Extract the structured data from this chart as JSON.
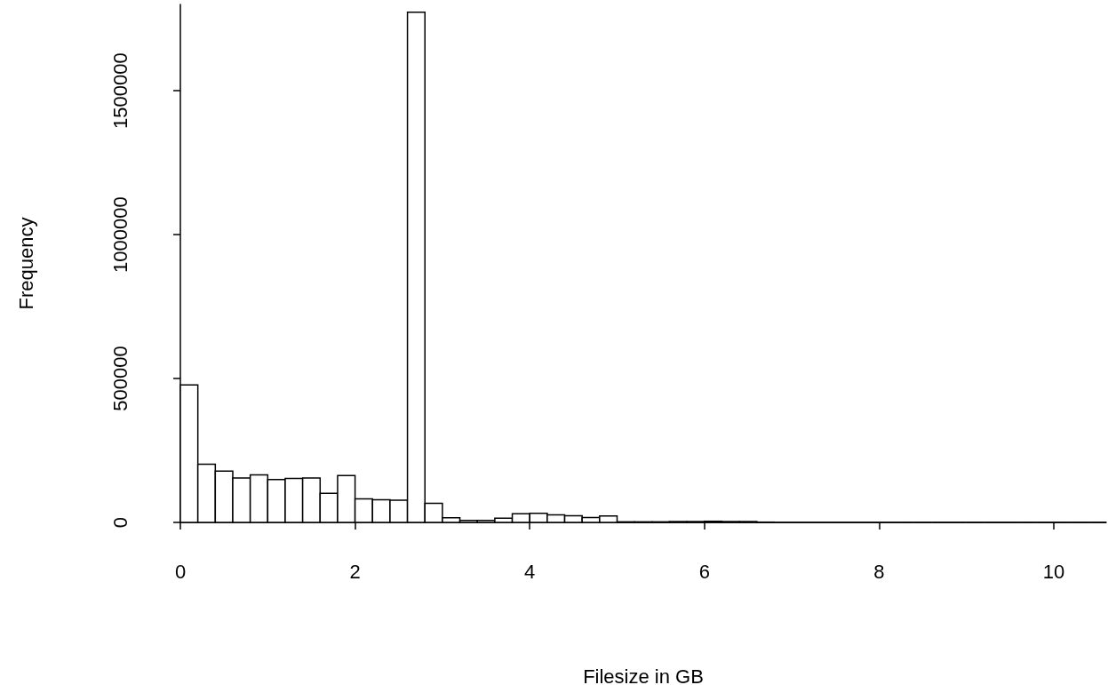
{
  "chart_data": {
    "type": "histogram",
    "xlabel": "Filesize in GB",
    "ylabel": "Frequency",
    "bins": [
      0,
      0.2,
      0.4,
      0.6,
      0.8,
      1,
      1.2,
      1.4,
      1.6,
      1.8,
      2,
      2.2,
      2.4,
      2.6,
      2.8,
      3,
      3.2,
      3.4,
      3.6,
      3.8,
      4,
      4.2,
      4.4,
      4.6,
      4.8,
      5,
      5.2,
      5.4,
      5.6,
      5.8,
      6,
      6.2,
      6.4,
      6.6,
      6.8,
      7,
      7.2,
      7.4,
      7.6,
      7.8,
      8,
      8.2,
      8.4,
      8.6,
      8.8,
      9,
      9.2,
      9.4,
      9.6,
      9.8,
      10,
      10.2,
      10.4,
      10.6
    ],
    "values": [
      478000,
      202000,
      178000,
      154000,
      165000,
      149000,
      153000,
      154000,
      101000,
      163000,
      82000,
      79000,
      77000,
      1773000,
      66000,
      16000,
      7000,
      7000,
      15000,
      30000,
      32000,
      26000,
      23000,
      17000,
      22000,
      2000,
      2000,
      2000,
      3000,
      3000,
      4000,
      3000,
      3000,
      1000,
      0,
      0,
      0,
      0,
      0,
      0,
      0,
      0,
      0,
      0,
      0,
      0,
      0,
      0,
      0,
      0,
      0,
      0,
      0
    ],
    "color": "#ffffff",
    "xlim": [
      0,
      10.6
    ],
    "xticks": [
      0,
      2,
      4,
      6,
      8,
      10
    ],
    "ylim": [
      0,
      1800000
    ],
    "yticks": [
      0,
      500000,
      1000000,
      1500000
    ],
    "grid": false
  }
}
